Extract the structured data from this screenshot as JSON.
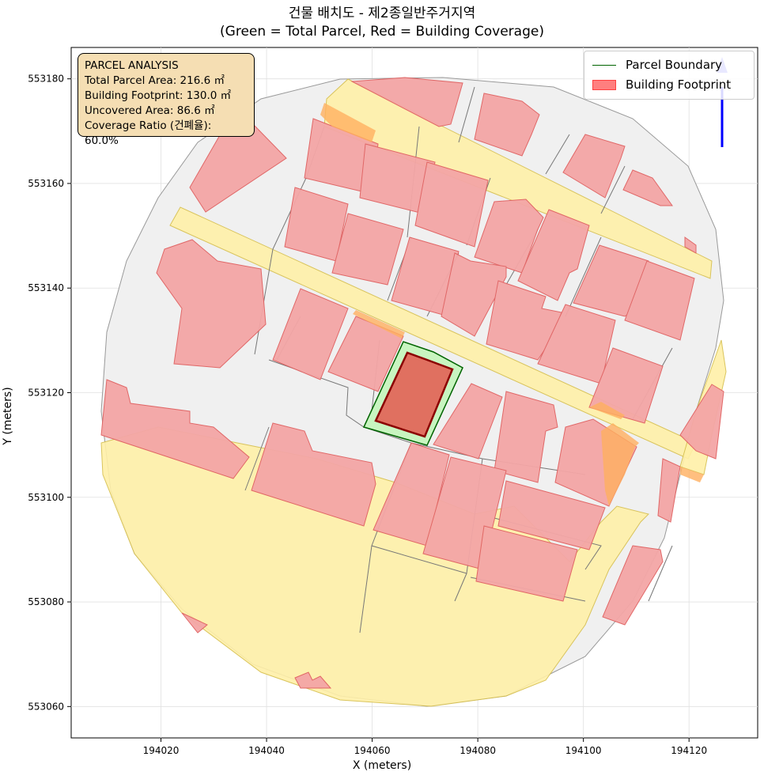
{
  "title": {
    "line1": "건물 배치도 - 제2종일반주거지역",
    "line2": "(Green = Total Parcel, Red = Building Coverage)"
  },
  "axes": {
    "xlabel": "X (meters)",
    "ylabel": "Y (meters)",
    "xticks": [
      "194020",
      "194040",
      "194060",
      "194080",
      "194100",
      "194120"
    ],
    "yticks": [
      "553060",
      "553080",
      "553100",
      "553120",
      "553140",
      "553160",
      "553180"
    ]
  },
  "info_box": {
    "heading": "PARCEL ANALYSIS",
    "total_area": "Total Parcel Area: 216.6 ㎡",
    "footprint": "Building Footprint: 130.0 ㎡",
    "uncovered": "Uncovered Area: 86.6 ㎡",
    "coverage": "Coverage Ratio (건폐율): 60.0%"
  },
  "legend": {
    "parcel_boundary": "Parcel Boundary",
    "building_footprint": "Building Footprint"
  },
  "colors": {
    "parcel_fill": "#c8f5c0",
    "parcel_edge": "#006400",
    "building_fill": "#e07060",
    "building_edge": "#8b0000",
    "context_building": "#f4a6a6",
    "road": "#fff0a8",
    "lot": "#f0f0f0",
    "north_arrow": "#0000ff"
  },
  "chart_data": {
    "type": "map",
    "x_range": [
      194003,
      194133
    ],
    "y_range": [
      553054,
      553186
    ],
    "grid": true,
    "legend_position": "top-right",
    "target_parcel_area_m2": 216.6,
    "building_footprint_m2": 130.0,
    "uncovered_area_m2": 86.6,
    "coverage_ratio_percent": 60.0
  }
}
